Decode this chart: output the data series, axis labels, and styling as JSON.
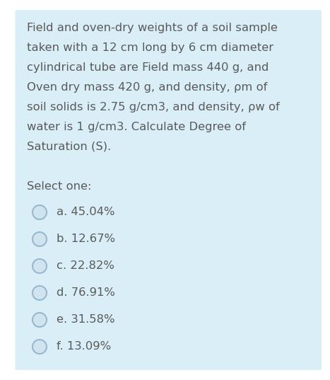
{
  "fig_bg": "#ffffff",
  "card_bg": "#daeef8",
  "text_color": "#5a5a5a",
  "paragraph_lines": [
    "Field and oven-dry weights of a soil sample",
    "taken with a 12 cm long by 6 cm diameter",
    "cylindrical tube are Field mass 440 g, and",
    "Oven dry mass 420 g, and density, ρm of",
    "soil solids is 2.75 g/cm3, and density, ρw of",
    "water is 1 g/cm3. Calculate Degree of",
    "Saturation (S)."
  ],
  "select_label": "Select one:",
  "options": [
    "a. 45.04%",
    "b. 12.67%",
    "c. 22.82%",
    "d. 76.91%",
    "e. 31.58%",
    "f. 13.09%"
  ],
  "font_size_para": 11.8,
  "font_size_options": 11.8,
  "font_size_select": 11.8,
  "circle_edge_color": "#9ab8cc",
  "circle_face_color": "#d0e4ef"
}
